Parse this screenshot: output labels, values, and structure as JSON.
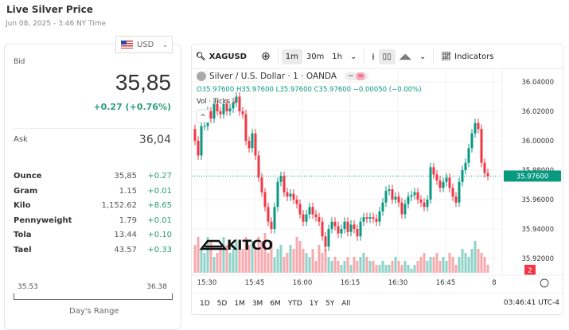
{
  "header": {
    "title": "Live Silver Price",
    "date": "Jun 08, 2025 - 3:46 NY Time",
    "currency": "USD"
  },
  "quote": {
    "bid_label": "Bid",
    "bid": "35,85",
    "change": "+0.27 (+0.76%)",
    "ask_label": "Ask",
    "ask": "36,04"
  },
  "units": [
    {
      "unit": "Ounce",
      "price": "35,85",
      "change": "+0.27"
    },
    {
      "unit": "Gram",
      "price": "1.15",
      "change": "+0.01"
    },
    {
      "unit": "Kilo",
      "price": "1,152.62",
      "change": "+8.65"
    },
    {
      "unit": "Pennyweight",
      "price": "1.79",
      "change": "+0.01"
    },
    {
      "unit": "Tola",
      "price": "13.44",
      "change": "+0.10"
    },
    {
      "unit": "Tael",
      "price": "43.57",
      "change": "+0.33"
    }
  ],
  "range": {
    "low": "35.53",
    "high": "36.38",
    "label": "Day's Range"
  },
  "toolbar": {
    "symbol": "XAGUSD",
    "intervals": [
      "1m",
      "30m",
      "1h"
    ],
    "active_interval": "1m",
    "indicators": "Indicators"
  },
  "legend": {
    "title": "Silver / U.S. Dollar · 1 · OANDA",
    "ohlc": "O35.97600 H35.97600 L35.97600 C35.97600 −0.00050 (−0.00%)",
    "vol_label": "Vol · Ticks",
    "vol_value": "2"
  },
  "ranges": [
    "1D",
    "5D",
    "1M",
    "3M",
    "6M",
    "YTD",
    "1Y",
    "5Y",
    "All"
  ],
  "clock": "03:46:41 UTC-4",
  "logo": "KITCO",
  "colors": {
    "up": "#089981",
    "down": "#f23645",
    "up_vol": "#8fd3c8",
    "down_vol": "#f7a9ae",
    "positive": "#2a9d7c"
  },
  "chart_data": {
    "type": "candlestick",
    "interval": "1m",
    "start_time": "15:26",
    "y_ticks": [
      "36.04000",
      "36.02000",
      "36.00000",
      "35.98000",
      "35.96000",
      "35.94000",
      "35.92000"
    ],
    "ylim": [
      35.915,
      36.045
    ],
    "x_ticks": [
      "15:30",
      "15:45",
      "16:00",
      "16:15",
      "16:30",
      "16:45",
      "8"
    ],
    "last_price": "35.97600",
    "last_volume": "2",
    "close": [
      36.0,
      35.99,
      36.01,
      36.01,
      36.02,
      36.015,
      36.025,
      36.02,
      36.018,
      36.025,
      36.02,
      36.022,
      36.026,
      36.03,
      36.02,
      36.018,
      36.0,
      35.995,
      36.005,
      35.99,
      35.975,
      35.965,
      35.955,
      35.945,
      35.94,
      35.955,
      35.972,
      35.976,
      35.965,
      35.962,
      35.964,
      35.96,
      35.957,
      35.95,
      35.945,
      35.95,
      35.955,
      35.95,
      35.948,
      35.945,
      35.935,
      35.928,
      35.94,
      35.945,
      35.942,
      35.937,
      35.94,
      35.945,
      35.938,
      35.943,
      35.94,
      35.935,
      35.945,
      35.948,
      35.947,
      35.948,
      35.947,
      35.945,
      35.952,
      35.958,
      35.966,
      35.967,
      35.96,
      35.962,
      35.958,
      35.95,
      35.957,
      35.962,
      35.963,
      35.965,
      35.96,
      35.958,
      35.955,
      35.96,
      35.982,
      35.977,
      35.973,
      35.968,
      35.972,
      35.975,
      35.968,
      35.962,
      35.958,
      35.972,
      35.98,
      35.985,
      35.995,
      36.005,
      36.012,
      36.008,
      35.985,
      35.978,
      35.976
    ],
    "volume": [
      7,
      9,
      6,
      5,
      9,
      8,
      4,
      5,
      6,
      9,
      7,
      5,
      6,
      8,
      7,
      6,
      9,
      7,
      8,
      6,
      9,
      8,
      10,
      5,
      8,
      4,
      6,
      7,
      4,
      5,
      7,
      6,
      9,
      8,
      6,
      5,
      4,
      6,
      3,
      7,
      5,
      6,
      4,
      3,
      4,
      3,
      2,
      3,
      4,
      2,
      4,
      3,
      4,
      5,
      4,
      3,
      3,
      2,
      2,
      3,
      2,
      2,
      3,
      4,
      3,
      2,
      3,
      2,
      1,
      2,
      3,
      4,
      5,
      3,
      4,
      4,
      5,
      3,
      4,
      3,
      5,
      4,
      2,
      4,
      6,
      5,
      4,
      6,
      8,
      6,
      5,
      4,
      2
    ]
  }
}
